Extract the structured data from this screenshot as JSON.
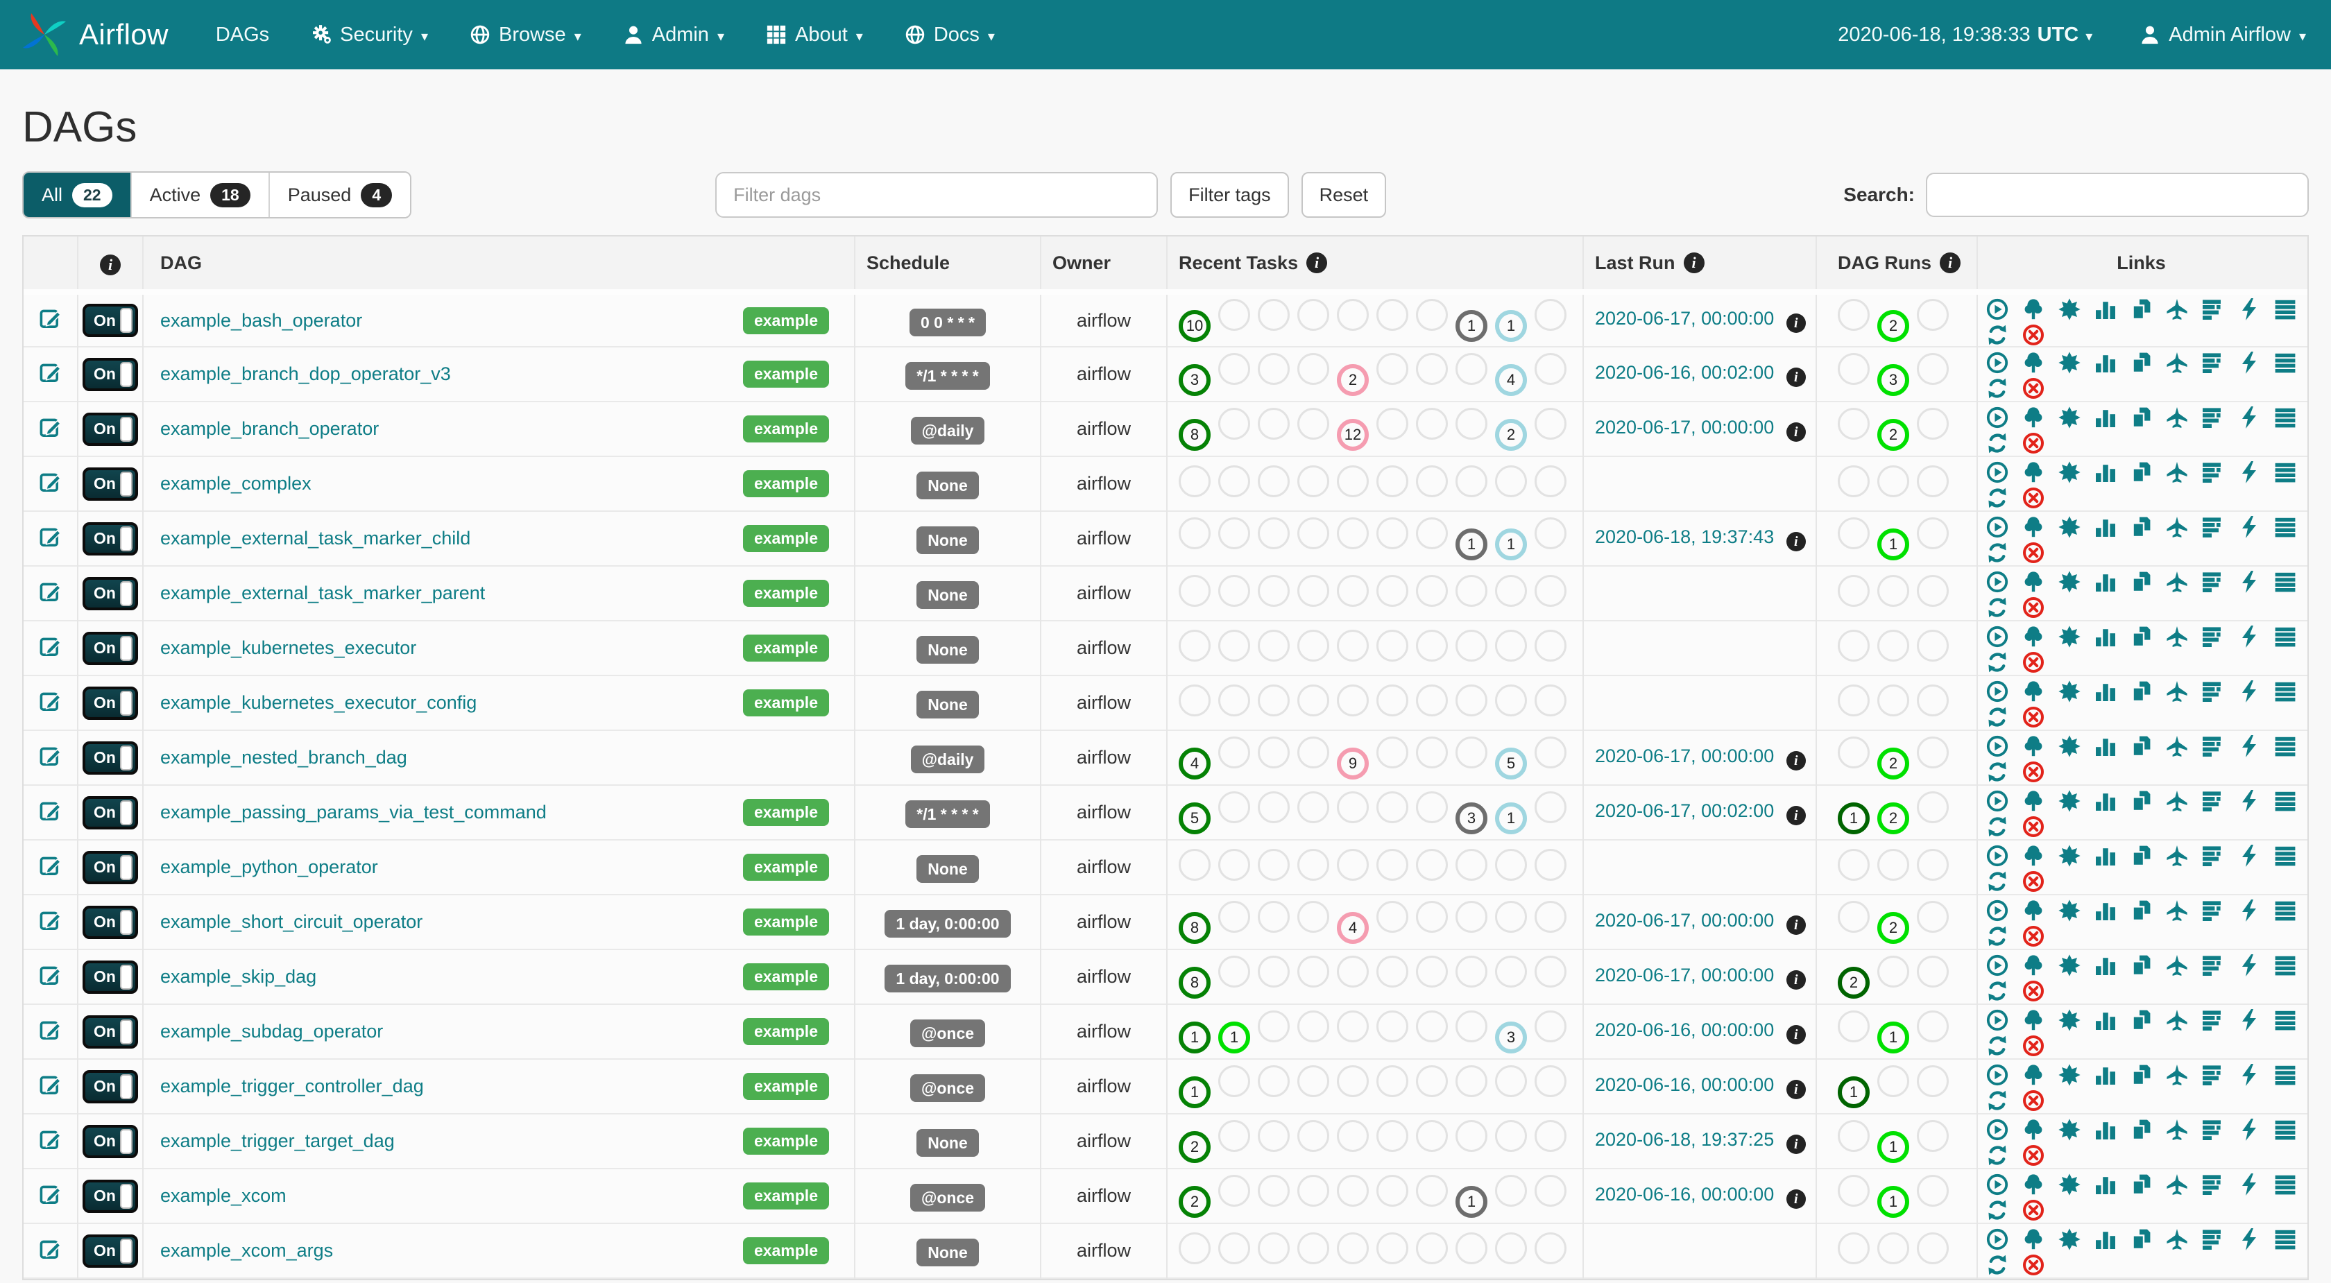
{
  "navbar": {
    "brand": "Airflow",
    "items": [
      {
        "label": "DAGs",
        "icon": null,
        "caret": false
      },
      {
        "label": "Security",
        "icon": "gears-icon",
        "caret": true
      },
      {
        "label": "Browse",
        "icon": "globe-icon",
        "caret": true
      },
      {
        "label": "Admin",
        "icon": "user-icon",
        "caret": true
      },
      {
        "label": "About",
        "icon": "grid-icon",
        "caret": true
      },
      {
        "label": "Docs",
        "icon": "globe-icon",
        "caret": true
      }
    ],
    "clock_time": "2020-06-18, 19:38:33",
    "clock_tz": "UTC",
    "user_name": "Admin Airflow"
  },
  "page": {
    "title": "DAGs"
  },
  "tabs": [
    {
      "label": "All",
      "count": "22",
      "active": true
    },
    {
      "label": "Active",
      "count": "18",
      "active": false
    },
    {
      "label": "Paused",
      "count": "4",
      "active": false
    }
  ],
  "filters": {
    "filter_dags_placeholder": "Filter dags",
    "filter_tags_label": "Filter tags",
    "reset_label": "Reset",
    "search_label": "Search:",
    "search_value": ""
  },
  "state_colors": {
    "success": "#058205",
    "running": "#00e000",
    "skipped": "#f59cb0",
    "queued": "#6d6d6d",
    "none": "#9fd6e0",
    "run_success": "#006400",
    "link_teal": "#0E7D86",
    "delete_red": "#e2231a",
    "tag_green": "#4CAF50"
  },
  "table": {
    "headers": {
      "dag": "DAG",
      "schedule": "Schedule",
      "owner": "Owner",
      "recent_tasks": "Recent Tasks",
      "last_run": "Last Run",
      "dag_runs": "DAG Runs",
      "links": "Links"
    },
    "toggle_on_label": "On",
    "task_states": [
      "success",
      "running",
      "failed",
      "upstream_failed",
      "skipped",
      "up_for_reschedule",
      "up_for_retry",
      "queued",
      "none",
      "scheduled"
    ],
    "run_states": [
      "success",
      "running",
      "failed"
    ],
    "link_icon_names": [
      "trigger-dag-icon",
      "tree-view-icon",
      "graph-view-icon",
      "task-duration-icon",
      "task-tries-icon",
      "landing-times-icon",
      "gantt-view-icon",
      "code-view-icon",
      "dag-details-icon",
      "refresh-icon",
      "delete-dag-icon"
    ],
    "rows": [
      {
        "name": "example_bash_operator",
        "tag": "example",
        "schedule": "0 0 * * *",
        "owner": "airflow",
        "tasks": {
          "success": 10,
          "queued": 1,
          "none": 1
        },
        "last_run": "2020-06-17, 00:00:00",
        "runs": {
          "running": 2
        }
      },
      {
        "name": "example_branch_dop_operator_v3",
        "tag": "example",
        "schedule": "*/1 * * * *",
        "owner": "airflow",
        "tasks": {
          "success": 3,
          "skipped": 2,
          "none": 4
        },
        "last_run": "2020-06-16, 00:02:00",
        "runs": {
          "running": 3
        }
      },
      {
        "name": "example_branch_operator",
        "tag": "example",
        "schedule": "@daily",
        "owner": "airflow",
        "tasks": {
          "success": 8,
          "skipped": 12,
          "none": 2
        },
        "last_run": "2020-06-17, 00:00:00",
        "runs": {
          "running": 2
        }
      },
      {
        "name": "example_complex",
        "tag": "example",
        "schedule": "None",
        "owner": "airflow",
        "tasks": {},
        "last_run": null,
        "runs": {}
      },
      {
        "name": "example_external_task_marker_child",
        "tag": "example",
        "schedule": "None",
        "owner": "airflow",
        "tasks": {
          "queued": 1,
          "none": 1
        },
        "last_run": "2020-06-18, 19:37:43",
        "runs": {
          "running": 1
        }
      },
      {
        "name": "example_external_task_marker_parent",
        "tag": "example",
        "schedule": "None",
        "owner": "airflow",
        "tasks": {},
        "last_run": null,
        "runs": {}
      },
      {
        "name": "example_kubernetes_executor",
        "tag": "example",
        "schedule": "None",
        "owner": "airflow",
        "tasks": {},
        "last_run": null,
        "runs": {}
      },
      {
        "name": "example_kubernetes_executor_config",
        "tag": "example",
        "schedule": "None",
        "owner": "airflow",
        "tasks": {},
        "last_run": null,
        "runs": {}
      },
      {
        "name": "example_nested_branch_dag",
        "tag": null,
        "schedule": "@daily",
        "owner": "airflow",
        "tasks": {
          "success": 4,
          "skipped": 9,
          "none": 5
        },
        "last_run": "2020-06-17, 00:00:00",
        "runs": {
          "running": 2
        }
      },
      {
        "name": "example_passing_params_via_test_command",
        "tag": "example",
        "schedule": "*/1 * * * *",
        "owner": "airflow",
        "tasks": {
          "success": 5,
          "queued": 3,
          "none": 1
        },
        "last_run": "2020-06-17, 00:02:00",
        "runs": {
          "success": 1,
          "running": 2
        }
      },
      {
        "name": "example_python_operator",
        "tag": "example",
        "schedule": "None",
        "owner": "airflow",
        "tasks": {},
        "last_run": null,
        "runs": {}
      },
      {
        "name": "example_short_circuit_operator",
        "tag": "example",
        "schedule": "1 day, 0:00:00",
        "owner": "airflow",
        "tasks": {
          "success": 8,
          "skipped": 4
        },
        "last_run": "2020-06-17, 00:00:00",
        "runs": {
          "running": 2
        }
      },
      {
        "name": "example_skip_dag",
        "tag": "example",
        "schedule": "1 day, 0:00:00",
        "owner": "airflow",
        "tasks": {
          "success": 8
        },
        "last_run": "2020-06-17, 00:00:00",
        "runs": {
          "success": 2
        }
      },
      {
        "name": "example_subdag_operator",
        "tag": "example",
        "schedule": "@once",
        "owner": "airflow",
        "tasks": {
          "success": 1,
          "running": 1,
          "none": 3
        },
        "last_run": "2020-06-16, 00:00:00",
        "runs": {
          "running": 1
        }
      },
      {
        "name": "example_trigger_controller_dag",
        "tag": "example",
        "schedule": "@once",
        "owner": "airflow",
        "tasks": {
          "success": 1
        },
        "last_run": "2020-06-16, 00:00:00",
        "runs": {
          "success": 1
        }
      },
      {
        "name": "example_trigger_target_dag",
        "tag": "example",
        "schedule": "None",
        "owner": "airflow",
        "tasks": {
          "success": 2
        },
        "last_run": "2020-06-18, 19:37:25",
        "runs": {
          "running": 1
        }
      },
      {
        "name": "example_xcom",
        "tag": "example",
        "schedule": "@once",
        "owner": "airflow",
        "tasks": {
          "success": 2,
          "queued": 1
        },
        "last_run": "2020-06-16, 00:00:00",
        "runs": {
          "running": 1
        }
      },
      {
        "name": "example_xcom_args",
        "tag": "example",
        "schedule": "None",
        "owner": "airflow",
        "tasks": {},
        "last_run": null,
        "runs": {}
      }
    ]
  }
}
